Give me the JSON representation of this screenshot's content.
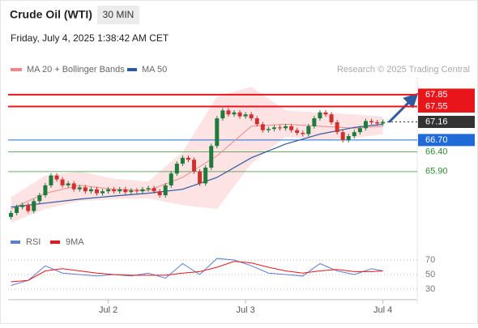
{
  "chart_data": {
    "type": "candlestick",
    "title": "Crude Oil (WTI)",
    "interval": "30 MIN",
    "timestamp": "Friday, July 4, 2025 1:38:42 AM CET",
    "source": "Research © 2025 Trading Central",
    "up_color": "#1e7b3c",
    "down_color": "#d0312d",
    "xlim": [
      -0.5,
      71
    ],
    "xticks": [
      {
        "value": 17,
        "label": "Jul 2"
      },
      {
        "value": 41,
        "label": "Jul 3"
      },
      {
        "value": 65,
        "label": "Jul 4"
      }
    ],
    "ylim": [
      64.5,
      68.3
    ],
    "open": [
      64.75,
      64.85,
      65.0,
      65.05,
      64.9,
      65.15,
      65.3,
      65.55,
      65.8,
      65.7,
      65.55,
      65.6,
      65.45,
      65.5,
      65.4,
      65.45,
      65.35,
      65.4,
      65.45,
      65.4,
      65.45,
      65.38,
      65.42,
      65.4,
      65.45,
      65.48,
      65.4,
      65.3,
      65.55,
      65.85,
      66.1,
      66.25,
      66.2,
      65.9,
      65.6,
      66.0,
      66.55,
      67.25,
      67.45,
      67.35,
      67.4,
      67.3,
      67.35,
      67.25,
      67.1,
      66.95,
      66.98,
      67.02,
      67.0,
      67.05,
      66.95,
      66.88,
      66.85,
      67.05,
      67.25,
      67.4,
      67.35,
      67.15,
      66.9,
      66.7,
      66.8,
      66.9,
      67.0,
      67.18,
      67.15,
      67.12
    ],
    "high": [
      64.91,
      65.06,
      65.11,
      65.11,
      65.21,
      65.36,
      65.61,
      65.86,
      65.86,
      65.76,
      65.66,
      65.66,
      65.56,
      65.56,
      65.51,
      65.51,
      65.46,
      65.51,
      65.51,
      65.51,
      65.51,
      65.48,
      65.48,
      65.51,
      65.54,
      65.54,
      65.46,
      65.61,
      65.91,
      66.16,
      66.31,
      66.31,
      66.26,
      65.96,
      66.06,
      66.61,
      67.31,
      67.51,
      67.51,
      67.46,
      67.46,
      67.41,
      67.41,
      67.31,
      67.16,
      67.04,
      67.08,
      67.08,
      67.11,
      67.11,
      67.01,
      66.94,
      67.11,
      67.31,
      67.46,
      67.46,
      67.41,
      67.21,
      66.96,
      66.86,
      66.96,
      67.06,
      67.24,
      67.24,
      67.21,
      67.22
    ],
    "low": [
      64.69,
      64.79,
      64.94,
      64.84,
      64.84,
      65.09,
      65.24,
      65.49,
      65.64,
      65.49,
      65.49,
      65.39,
      65.39,
      65.34,
      65.34,
      65.29,
      65.29,
      65.34,
      65.34,
      65.34,
      65.32,
      65.32,
      65.34,
      65.34,
      65.39,
      65.34,
      65.24,
      65.24,
      65.49,
      65.79,
      66.04,
      66.14,
      65.84,
      65.54,
      65.54,
      65.94,
      66.49,
      67.19,
      67.29,
      67.29,
      67.24,
      67.24,
      67.19,
      67.04,
      66.89,
      66.89,
      66.92,
      66.94,
      66.94,
      66.89,
      66.82,
      66.79,
      66.79,
      66.99,
      67.19,
      67.29,
      67.09,
      66.84,
      66.64,
      66.64,
      66.74,
      66.84,
      66.94,
      67.09,
      67.06,
      67.06
    ],
    "close": [
      64.85,
      65.0,
      65.05,
      64.9,
      65.15,
      65.3,
      65.55,
      65.8,
      65.7,
      65.55,
      65.6,
      65.45,
      65.5,
      65.4,
      65.45,
      65.35,
      65.4,
      65.45,
      65.4,
      65.45,
      65.38,
      65.42,
      65.4,
      65.45,
      65.48,
      65.4,
      65.3,
      65.55,
      65.85,
      66.1,
      66.25,
      66.2,
      65.9,
      65.6,
      66.0,
      66.55,
      67.25,
      67.45,
      67.35,
      67.4,
      67.3,
      67.35,
      67.25,
      67.1,
      66.95,
      66.98,
      67.02,
      67.0,
      67.05,
      66.95,
      66.88,
      66.85,
      67.05,
      67.25,
      67.4,
      67.35,
      67.15,
      66.9,
      66.7,
      66.8,
      66.9,
      67.0,
      67.18,
      67.15,
      67.12,
      67.16
    ],
    "ma_x": [
      0,
      6,
      12,
      18,
      24,
      30,
      36,
      42,
      48,
      54,
      60,
      65
    ],
    "bollinger": {
      "name": "MA 20 + Bollinger Bands",
      "color": "#f08a8a",
      "band_color": "#fde3e3",
      "mid": [
        64.95,
        65.35,
        65.55,
        65.45,
        65.42,
        65.75,
        66.3,
        67.05,
        67.1,
        67.05,
        67.0,
        67.05
      ],
      "upper": [
        65.25,
        65.8,
        65.9,
        65.72,
        65.65,
        66.4,
        67.8,
        68.05,
        67.45,
        67.4,
        67.35,
        67.3
      ],
      "lower": [
        64.6,
        64.95,
        65.15,
        65.2,
        65.22,
        65.05,
        64.95,
        66.1,
        66.78,
        66.7,
        66.75,
        66.85
      ]
    },
    "ma50": {
      "name": "MA 50",
      "color": "#2d5aa0",
      "values": [
        65.0,
        65.1,
        65.2,
        65.28,
        65.35,
        65.45,
        65.75,
        66.25,
        66.6,
        66.85,
        67.02,
        67.1
      ]
    },
    "levels": [
      {
        "value": 67.85,
        "label": "67.85",
        "color": "#e8161b",
        "box": true,
        "dotted": false
      },
      {
        "value": 67.55,
        "label": "67.55",
        "color": "#e8161b",
        "box": true,
        "dotted": false
      },
      {
        "value": 67.16,
        "label": "67.16",
        "color": "#333333",
        "box": true,
        "dotted": true
      },
      {
        "value": 66.7,
        "label": "66.70",
        "color": "#1f6ad6",
        "box": true,
        "dotted": false
      },
      {
        "value": 66.4,
        "label": "66.40",
        "color": "#2e8b2e",
        "box": false,
        "dotted": false
      },
      {
        "value": 65.9,
        "label": "65.90",
        "color": "#2e8b2e",
        "box": false,
        "dotted": false
      }
    ],
    "rsi": {
      "x": [
        0,
        3,
        6,
        9,
        12,
        15,
        18,
        21,
        24,
        27,
        30,
        33,
        36,
        39,
        42,
        45,
        48,
        51,
        54,
        57,
        60,
        63,
        65
      ],
      "ylim": [
        20,
        82
      ],
      "yticks": [
        70,
        50,
        30
      ],
      "series": [
        {
          "name": "RSI",
          "color": "#5b7fd6",
          "values": [
            35,
            42,
            62,
            52,
            50,
            48,
            50,
            48,
            52,
            45,
            65,
            50,
            72,
            70,
            62,
            52,
            50,
            48,
            65,
            55,
            50,
            58,
            55
          ]
        },
        {
          "name": "9MA",
          "color": "#e8161b",
          "values": [
            40,
            42,
            55,
            58,
            55,
            52,
            50,
            49,
            49,
            49,
            52,
            54,
            60,
            68,
            66,
            60,
            55,
            52,
            55,
            57,
            54,
            54,
            55
          ]
        }
      ]
    }
  }
}
